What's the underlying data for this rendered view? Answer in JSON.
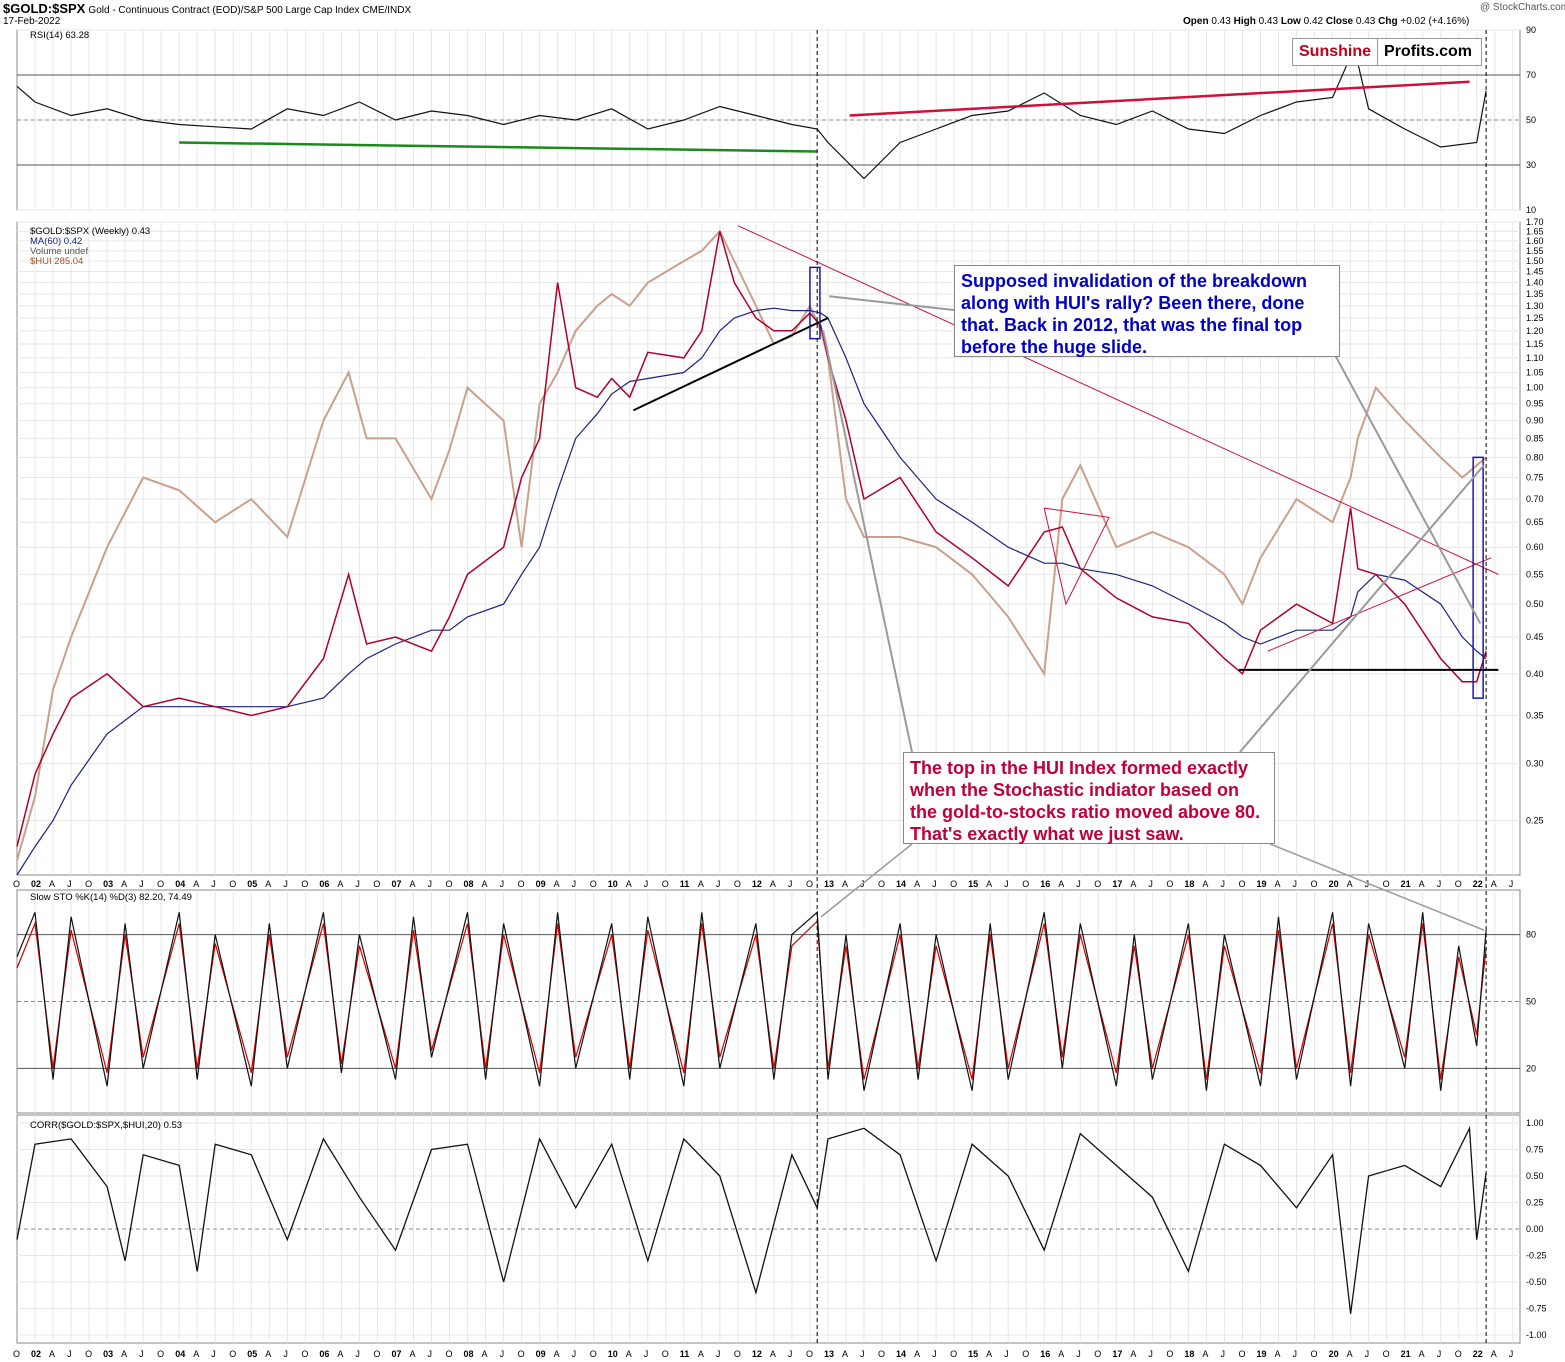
{
  "header": {
    "symbol": "$GOLD:$SPX",
    "description": "Gold - Continuous Contract (EOD)/S&P 500 Large Cap Index  CME/INDX",
    "date": "17-Feb-2022",
    "credit": "@ StockCharts.com",
    "ohlc": {
      "open_label": "Open",
      "open": "0.43",
      "high_label": "High",
      "high": "0.43",
      "low_label": "Low",
      "low": "0.42",
      "close_label": "Close",
      "close": "0.43",
      "chg_label": "Chg",
      "chg": "+0.02 (+4.16%)"
    }
  },
  "logo": {
    "part1": "Sunshine",
    "part2": "Profits.com"
  },
  "annotations": {
    "note_blue": "Supposed invalidation of the breakdown along with HUI's rally? Been there, done that. Back in 2012, that was the final top before the huge slide.",
    "note_red": "The top in the HUI Index formed exactly when the Stochastic indiator based on the gold-to-stocks ratio moved above 80. That's exactly what we just saw."
  },
  "colors": {
    "ratio": "#b0002a",
    "ma": "#1a237e",
    "hui": "#c9a08c",
    "rsi_overbought": "#2e7d32",
    "rsi_oversold": "#8d5a5a",
    "blue_note": "#0000c8",
    "red_note": "#c0003c",
    "stoch_d": "#d00000"
  },
  "chart_data": [
    {
      "type": "line",
      "panel": "RSI",
      "legend": "RSI(14) 63.28",
      "yticks": [
        10,
        30,
        50,
        70,
        90
      ],
      "ylim": [
        10,
        90
      ],
      "reference_lines": [
        30,
        50,
        70
      ],
      "x_labels": [
        "O",
        "02",
        "A",
        "J",
        "O",
        "03",
        "A",
        "J",
        "O",
        "04",
        "A",
        "J",
        "O",
        "05",
        "A",
        "J",
        "O",
        "06",
        "A",
        "J",
        "O",
        "07",
        "A",
        "J",
        "O",
        "08",
        "A",
        "J",
        "O",
        "09",
        "A",
        "J",
        "O",
        "10",
        "A",
        "J",
        "O",
        "11",
        "A",
        "J",
        "O",
        "12",
        "A",
        "J",
        "O",
        "13",
        "A",
        "J",
        "O",
        "14",
        "A",
        "J",
        "O",
        "15",
        "A",
        "J",
        "O",
        "16",
        "A",
        "J",
        "O",
        "17",
        "A",
        "J",
        "O",
        "18",
        "A",
        "J",
        "O",
        "19",
        "A",
        "J",
        "O",
        "20",
        "A",
        "J",
        "O",
        "21",
        "A",
        "J",
        "O",
        "22",
        "A",
        "J"
      ],
      "x": [
        2001.75,
        2002.0,
        2002.5,
        2003.0,
        2003.5,
        2004.0,
        2004.5,
        2005.0,
        2005.5,
        2006.0,
        2006.5,
        2007.0,
        2007.5,
        2008.0,
        2008.5,
        2009.0,
        2009.5,
        2010.0,
        2010.5,
        2011.0,
        2011.5,
        2012.0,
        2012.5,
        2012.85,
        2013.0,
        2013.5,
        2014.0,
        2014.5,
        2015.0,
        2015.5,
        2016.0,
        2016.5,
        2017.0,
        2017.5,
        2018.0,
        2018.5,
        2019.0,
        2019.5,
        2020.0,
        2020.3,
        2020.5,
        2021.0,
        2021.5,
        2022.0,
        2022.13
      ],
      "y": [
        65,
        58,
        52,
        55,
        50,
        48,
        47,
        46,
        55,
        52,
        58,
        50,
        54,
        52,
        48,
        52,
        50,
        55,
        46,
        50,
        56,
        52,
        48,
        46,
        40,
        24,
        40,
        46,
        52,
        54,
        62,
        52,
        48,
        54,
        46,
        44,
        52,
        58,
        60,
        82,
        55,
        46,
        38,
        40,
        63
      ]
    },
    {
      "type": "line",
      "panel": "Price",
      "title": "$GOLD:$SPX (Weekly) 0.43",
      "legend": [
        "$GOLD:$SPX (Weekly) 0.43",
        "MA(60) 0.42",
        "Volume undef",
        "$HUI 285.04"
      ],
      "yscale": "log",
      "yticks": [
        0.25,
        0.3,
        0.35,
        0.4,
        0.45,
        0.5,
        0.55,
        0.6,
        0.65,
        0.7,
        0.75,
        0.8,
        0.85,
        0.9,
        0.95,
        1.0,
        1.05,
        1.1,
        1.15,
        1.2,
        1.25,
        1.3,
        1.35,
        1.4,
        1.45,
        1.5,
        1.55,
        1.6,
        1.65,
        1.7
      ],
      "ylim": [
        0.21,
        1.7
      ],
      "x": [
        2001.75,
        2002.0,
        2002.25,
        2002.5,
        2003.0,
        2003.5,
        2004.0,
        2004.5,
        2005.0,
        2005.5,
        2006.0,
        2006.35,
        2006.6,
        2007.0,
        2007.5,
        2007.75,
        2008.0,
        2008.5,
        2008.75,
        2009.0,
        2009.25,
        2009.5,
        2009.8,
        2010.0,
        2010.25,
        2010.5,
        2011.0,
        2011.25,
        2011.5,
        2011.7,
        2012.0,
        2012.25,
        2012.5,
        2012.75,
        2012.9,
        2013.0,
        2013.25,
        2013.5,
        2014.0,
        2014.5,
        2015.0,
        2015.5,
        2016.0,
        2016.25,
        2016.5,
        2017.0,
        2017.5,
        2018.0,
        2018.5,
        2018.75,
        2019.0,
        2019.5,
        2020.0,
        2020.25,
        2020.35,
        2020.6,
        2021.0,
        2021.5,
        2021.8,
        2022.0,
        2022.13
      ],
      "series": [
        {
          "name": "$GOLD:$SPX (Weekly) 0.43",
          "values": [
            0.23,
            0.29,
            0.33,
            0.37,
            0.4,
            0.36,
            0.37,
            0.36,
            0.35,
            0.36,
            0.42,
            0.55,
            0.44,
            0.45,
            0.43,
            0.48,
            0.55,
            0.6,
            0.75,
            0.85,
            1.4,
            1.0,
            0.97,
            1.03,
            0.97,
            1.12,
            1.1,
            1.2,
            1.65,
            1.4,
            1.25,
            1.2,
            1.2,
            1.27,
            1.22,
            1.1,
            0.9,
            0.7,
            0.75,
            0.63,
            0.58,
            0.53,
            0.63,
            0.64,
            0.56,
            0.51,
            0.48,
            0.47,
            0.42,
            0.4,
            0.46,
            0.5,
            0.47,
            0.68,
            0.56,
            0.55,
            0.5,
            0.42,
            0.39,
            0.39,
            0.43
          ]
        },
        {
          "name": "MA(60) 0.42",
          "values": [
            0.21,
            0.23,
            0.25,
            0.28,
            0.33,
            0.36,
            0.36,
            0.36,
            0.36,
            0.36,
            0.37,
            0.4,
            0.42,
            0.44,
            0.46,
            0.46,
            0.48,
            0.5,
            0.55,
            0.6,
            0.72,
            0.85,
            0.92,
            0.98,
            1.02,
            1.03,
            1.05,
            1.1,
            1.2,
            1.25,
            1.28,
            1.29,
            1.28,
            1.28,
            1.27,
            1.25,
            1.1,
            0.95,
            0.8,
            0.7,
            0.65,
            0.6,
            0.57,
            0.57,
            0.56,
            0.55,
            0.53,
            0.5,
            0.47,
            0.45,
            0.44,
            0.46,
            0.46,
            0.48,
            0.52,
            0.55,
            0.54,
            0.5,
            0.45,
            0.43,
            0.42
          ]
        },
        {
          "name": "$HUI 285.04",
          "values": [
            0.22,
            0.27,
            0.38,
            0.45,
            0.6,
            0.75,
            0.72,
            0.65,
            0.7,
            0.62,
            0.9,
            1.05,
            0.85,
            0.85,
            0.7,
            0.82,
            1.0,
            0.9,
            0.6,
            0.95,
            1.05,
            1.2,
            1.3,
            1.35,
            1.3,
            1.4,
            1.5,
            1.55,
            1.65,
            1.5,
            1.3,
            1.15,
            1.18,
            1.3,
            1.2,
            1.1,
            0.7,
            0.62,
            0.62,
            0.6,
            0.55,
            0.48,
            0.4,
            0.7,
            0.78,
            0.6,
            0.63,
            0.6,
            0.55,
            0.5,
            0.58,
            0.7,
            0.65,
            0.75,
            0.85,
            1.0,
            0.9,
            0.8,
            0.75,
            0.78,
            0.8
          ]
        }
      ]
    },
    {
      "type": "line",
      "panel": "Stochastic",
      "legend": "Slow STO %K(14) %D(3) 82.20, 74.49",
      "yticks": [
        20,
        50,
        80
      ],
      "ylim": [
        0,
        100
      ],
      "reference_lines": [
        20,
        50,
        80
      ],
      "x": [
        2001.75,
        2002.0,
        2002.25,
        2002.5,
        2003.0,
        2003.25,
        2003.5,
        2004.0,
        2004.25,
        2004.5,
        2005.0,
        2005.25,
        2005.5,
        2006.0,
        2006.25,
        2006.5,
        2007.0,
        2007.25,
        2007.5,
        2008.0,
        2008.25,
        2008.5,
        2009.0,
        2009.25,
        2009.5,
        2010.0,
        2010.25,
        2010.5,
        2011.0,
        2011.25,
        2011.5,
        2012.0,
        2012.25,
        2012.5,
        2012.85,
        2013.0,
        2013.25,
        2013.5,
        2014.0,
        2014.25,
        2014.5,
        2015.0,
        2015.25,
        2015.5,
        2016.0,
        2016.25,
        2016.5,
        2017.0,
        2017.25,
        2017.5,
        2018.0,
        2018.25,
        2018.5,
        2019.0,
        2019.25,
        2019.5,
        2020.0,
        2020.25,
        2020.5,
        2021.0,
        2021.25,
        2021.5,
        2021.75,
        2022.0,
        2022.13
      ],
      "series": [
        {
          "name": "%K",
          "values": [
            70,
            90,
            15,
            88,
            12,
            85,
            20,
            90,
            15,
            80,
            12,
            85,
            20,
            90,
            18,
            80,
            15,
            88,
            25,
            90,
            15,
            85,
            12,
            90,
            20,
            85,
            15,
            88,
            12,
            90,
            20,
            85,
            15,
            80,
            90,
            15,
            80,
            10,
            85,
            15,
            80,
            10,
            85,
            15,
            90,
            20,
            85,
            12,
            80,
            15,
            85,
            10,
            80,
            12,
            88,
            15,
            90,
            12,
            85,
            20,
            90,
            10,
            75,
            30,
            82
          ]
        },
        {
          "name": "%D",
          "values": [
            65,
            85,
            20,
            82,
            18,
            80,
            25,
            85,
            20,
            76,
            18,
            80,
            25,
            85,
            22,
            75,
            20,
            82,
            28,
            85,
            20,
            80,
            18,
            85,
            25,
            80,
            20,
            82,
            18,
            85,
            25,
            80,
            20,
            75,
            86,
            20,
            75,
            15,
            80,
            20,
            75,
            15,
            80,
            20,
            85,
            25,
            80,
            18,
            75,
            20,
            80,
            15,
            75,
            18,
            82,
            20,
            85,
            18,
            80,
            25,
            85,
            15,
            70,
            35,
            74
          ]
        }
      ]
    },
    {
      "type": "line",
      "panel": "Correlation",
      "legend": "CORR($GOLD:$SPX,$HUI,20) 0.53",
      "yticks": [
        -1.0,
        -0.75,
        -0.5,
        -0.25,
        0.0,
        0.25,
        0.5,
        0.75,
        1.0
      ],
      "ylim": [
        -1.0,
        1.0
      ],
      "reference_lines": [
        0
      ],
      "x": [
        2001.75,
        2002.0,
        2002.5,
        2003.0,
        2003.25,
        2003.5,
        2004.0,
        2004.25,
        2004.5,
        2005.0,
        2005.5,
        2006.0,
        2006.5,
        2007.0,
        2007.5,
        2008.0,
        2008.5,
        2009.0,
        2009.5,
        2010.0,
        2010.5,
        2011.0,
        2011.5,
        2012.0,
        2012.5,
        2012.85,
        2013.0,
        2013.5,
        2014.0,
        2014.5,
        2015.0,
        2015.5,
        2016.0,
        2016.5,
        2017.0,
        2017.5,
        2018.0,
        2018.5,
        2019.0,
        2019.5,
        2020.0,
        2020.25,
        2020.5,
        2021.0,
        2021.5,
        2021.9,
        2022.0,
        2022.13
      ],
      "values": [
        -0.1,
        0.8,
        0.85,
        0.4,
        -0.3,
        0.7,
        0.6,
        -0.4,
        0.8,
        0.7,
        -0.1,
        0.85,
        0.3,
        -0.2,
        0.75,
        0.8,
        -0.5,
        0.85,
        0.2,
        0.8,
        -0.3,
        0.85,
        0.5,
        -0.6,
        0.7,
        0.2,
        0.85,
        0.95,
        0.7,
        -0.3,
        0.8,
        0.5,
        -0.2,
        0.9,
        0.6,
        0.3,
        -0.4,
        0.8,
        0.6,
        0.2,
        0.7,
        -0.8,
        0.5,
        0.6,
        0.4,
        0.95,
        -0.1,
        0.53
      ]
    }
  ]
}
